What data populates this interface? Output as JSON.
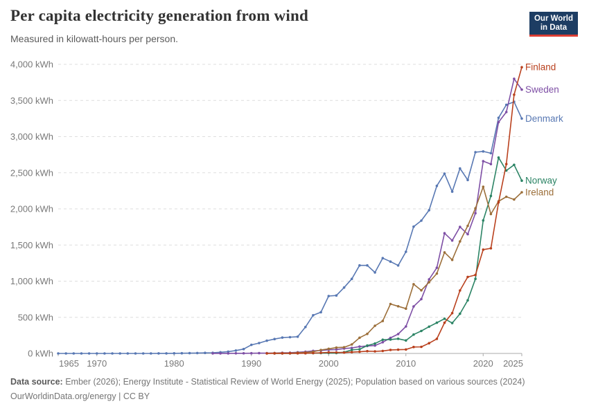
{
  "header": {
    "title": "Per capita electricity generation from wind",
    "subtitle": "Measured in kilowatt-hours per person."
  },
  "logo": {
    "line1": "Our World",
    "line2": "in Data"
  },
  "footer": {
    "source_label": "Data source:",
    "sources": "Ember (2026); Energy Institute - Statistical Review of World Energy (2025); Population based on various sources (2024)",
    "url": "OurWorldinData.org/energy",
    "separator": " | ",
    "license": "CC BY"
  },
  "chart_data": {
    "type": "line",
    "title": "Per capita electricity generation from wind",
    "subtitle": "Measured in kilowatt-hours per person.",
    "unit": "kWh",
    "xlim": [
      1965,
      2025
    ],
    "ylim": [
      0,
      4000
    ],
    "grid": true,
    "legend_position": "right-end-labels",
    "colors": {
      "grid": "#dedede",
      "axis": "#a9a9a9",
      "tick_text": "#787878"
    },
    "y_ticks": [
      {
        "value": 0,
        "label": "0 kWh"
      },
      {
        "value": 500,
        "label": "500 kWh"
      },
      {
        "value": 1000,
        "label": "1,000 kWh"
      },
      {
        "value": 1500,
        "label": "1,500 kWh"
      },
      {
        "value": 2000,
        "label": "2,000 kWh"
      },
      {
        "value": 2500,
        "label": "2,500 kWh"
      },
      {
        "value": 3000,
        "label": "3,000 kWh"
      },
      {
        "value": 3500,
        "label": "3,500 kWh"
      },
      {
        "value": 4000,
        "label": "4,000 kWh"
      }
    ],
    "x_ticks": [
      {
        "year": 1965,
        "label": "1965"
      },
      {
        "year": 1970,
        "label": "1970"
      },
      {
        "year": 1980,
        "label": "1980"
      },
      {
        "year": 1990,
        "label": "1990"
      },
      {
        "year": 2000,
        "label": "2000"
      },
      {
        "year": 2010,
        "label": "2010"
      },
      {
        "year": 2020,
        "label": "2020"
      },
      {
        "year": 2025,
        "label": "2025"
      }
    ],
    "series": [
      {
        "name": "Denmark",
        "color": "#5878b3",
        "start_year": 1965,
        "values": [
          0,
          0,
          0,
          0,
          0,
          0,
          0,
          0,
          0,
          0,
          0,
          0,
          0.4,
          0.7,
          1,
          2,
          3,
          4,
          6,
          8,
          10,
          16,
          25,
          40,
          60,
          119,
          144,
          176,
          199,
          219,
          225,
          232,
          366,
          528,
          570,
          794,
          802,
          912,
          1032,
          1218,
          1218,
          1121,
          1319,
          1271,
          1217,
          1407,
          1754,
          1837,
          1982,
          2319,
          2488,
          2238,
          2560,
          2400,
          2785,
          2795,
          2770,
          3260,
          3440,
          3480,
          3250
        ]
      },
      {
        "name": "Sweden",
        "color": "#7e4fa5",
        "start_year": 1985,
        "values": [
          0.5,
          0.7,
          1,
          1.5,
          2,
          3,
          4,
          5,
          6,
          9,
          11,
          16,
          23,
          35,
          41,
          51,
          54,
          68,
          76,
          95,
          103,
          109,
          155,
          215,
          268,
          373,
          650,
          752,
          1025,
          1186,
          1663,
          1563,
          1750,
          1650,
          1940,
          2660,
          2620,
          3200,
          3340,
          3800,
          3650
        ]
      },
      {
        "name": "Norway",
        "color": "#2c8465",
        "start_year": 1993,
        "values": [
          0.2,
          0.5,
          1,
          2,
          3,
          4,
          5,
          7,
          6,
          17,
          49,
          57,
          109,
          137,
          189,
          192,
          203,
          180,
          261,
          311,
          370,
          425,
          480,
          420,
          549,
          735,
          1032,
          1840,
          2180,
          2710,
          2530,
          2610,
          2390
        ]
      },
      {
        "name": "Ireland",
        "color": "#9c6f3a",
        "start_year": 1992,
        "values": [
          1,
          4,
          5,
          4,
          11,
          14,
          23,
          48,
          64,
          80,
          85,
          124,
          217,
          271,
          383,
          449,
          684,
          653,
          620,
          958,
          874,
          985,
          1105,
          1398,
          1295,
          1549,
          1766,
          2008,
          2305,
          1928,
          2105,
          2167,
          2130,
          2230
        ]
      },
      {
        "name": "Finland",
        "color": "#b9401d",
        "start_year": 1992,
        "values": [
          0.4,
          0.8,
          1.4,
          2.2,
          2.3,
          3.2,
          4.4,
          9.5,
          15,
          14,
          12,
          18,
          23,
          32,
          29,
          34,
          49,
          52,
          55,
          89,
          91,
          142,
          202,
          425,
          558,
          871,
          1058,
          1085,
          1436,
          1455,
          2090,
          2620,
          3580,
          3960
        ]
      }
    ]
  }
}
